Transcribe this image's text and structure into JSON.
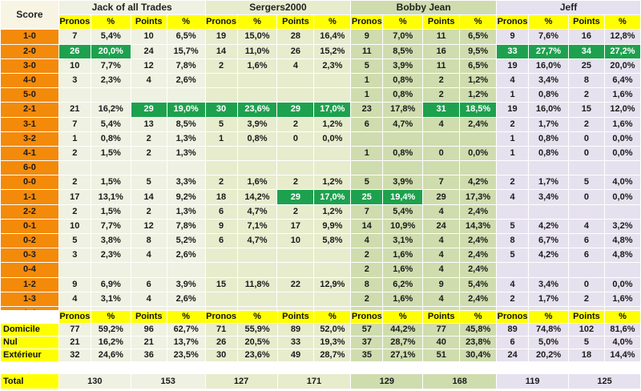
{
  "header": {
    "score_label": "Score",
    "groups": [
      "Jack of all Trades",
      "Sergers2000",
      "Bobby Jean",
      "Jeff"
    ],
    "subheaders": [
      "Pronos",
      "%",
      "Points",
      "%"
    ]
  },
  "highlight_color": "#1ea14e",
  "score_column_color": "#f38a0a",
  "subheader_color": "#ffff00",
  "rows": [
    {
      "score": "1-0",
      "cells": [
        "7",
        "5,4%",
        "10",
        "6,5%",
        "19",
        "15,0%",
        "28",
        "16,4%",
        "9",
        "7,0%",
        "11",
        "6,5%",
        "9",
        "7,6%",
        "16",
        "12,8%"
      ]
    },
    {
      "score": "2-0",
      "cells": [
        "26",
        "20,0%",
        "24",
        "15,7%",
        "14",
        "11,0%",
        "26",
        "15,2%",
        "11",
        "8,5%",
        "16",
        "9,5%",
        "33",
        "27,7%",
        "34",
        "27,2%"
      ]
    },
    {
      "score": "3-0",
      "cells": [
        "10",
        "7,7%",
        "12",
        "7,8%",
        "2",
        "1,6%",
        "4",
        "2,3%",
        "5",
        "3,9%",
        "11",
        "6,5%",
        "19",
        "16,0%",
        "25",
        "20,0%"
      ]
    },
    {
      "score": "4-0",
      "cells": [
        "3",
        "2,3%",
        "4",
        "2,6%",
        "",
        "",
        "",
        "",
        "1",
        "0,8%",
        "2",
        "1,2%",
        "4",
        "3,4%",
        "8",
        "6,4%"
      ]
    },
    {
      "score": "5-0",
      "cells": [
        "",
        "",
        "",
        "",
        "",
        "",
        "",
        "",
        "1",
        "0,8%",
        "2",
        "1,2%",
        "1",
        "0,8%",
        "2",
        "1,6%"
      ]
    },
    {
      "score": "2-1",
      "cells": [
        "21",
        "16,2%",
        "29",
        "19,0%",
        "30",
        "23,6%",
        "29",
        "17,0%",
        "23",
        "17,8%",
        "31",
        "18,5%",
        "19",
        "16,0%",
        "15",
        "12,0%"
      ]
    },
    {
      "score": "3-1",
      "cells": [
        "7",
        "5,4%",
        "13",
        "8,5%",
        "5",
        "3,9%",
        "2",
        "1,2%",
        "6",
        "4,7%",
        "4",
        "2,4%",
        "2",
        "1,7%",
        "2",
        "1,6%"
      ]
    },
    {
      "score": "3-2",
      "cells": [
        "1",
        "0,8%",
        "2",
        "1,3%",
        "1",
        "0,8%",
        "0",
        "0,0%",
        "",
        "",
        "",
        "",
        "1",
        "0,8%",
        "0",
        "0,0%"
      ]
    },
    {
      "score": "4-1",
      "cells": [
        "2",
        "1,5%",
        "2",
        "1,3%",
        "",
        "",
        "",
        "",
        "1",
        "0,8%",
        "0",
        "0,0%",
        "1",
        "0,8%",
        "0",
        "0,0%"
      ]
    },
    {
      "score": "6-0",
      "cells": [
        "",
        "",
        "",
        "",
        "",
        "",
        "",
        "",
        "",
        "",
        "",
        "",
        "",
        "",
        "",
        ""
      ]
    },
    {
      "score": "0-0",
      "cells": [
        "2",
        "1,5%",
        "5",
        "3,3%",
        "2",
        "1,6%",
        "2",
        "1,2%",
        "5",
        "3,9%",
        "7",
        "4,2%",
        "2",
        "1,7%",
        "5",
        "4,0%"
      ]
    },
    {
      "score": "1-1",
      "cells": [
        "17",
        "13,1%",
        "14",
        "9,2%",
        "18",
        "14,2%",
        "29",
        "17,0%",
        "25",
        "19,4%",
        "29",
        "17,3%",
        "4",
        "3,4%",
        "0",
        "0,0%"
      ]
    },
    {
      "score": "2-2",
      "cells": [
        "2",
        "1,5%",
        "2",
        "1,3%",
        "6",
        "4,7%",
        "2",
        "1,2%",
        "7",
        "5,4%",
        "4",
        "2,4%",
        "",
        "",
        "",
        ""
      ]
    },
    {
      "score": "0-1",
      "cells": [
        "10",
        "7,7%",
        "12",
        "7,8%",
        "9",
        "7,1%",
        "17",
        "9,9%",
        "14",
        "10,9%",
        "24",
        "14,3%",
        "5",
        "4,2%",
        "4",
        "3,2%"
      ]
    },
    {
      "score": "0-2",
      "cells": [
        "5",
        "3,8%",
        "8",
        "5,2%",
        "6",
        "4,7%",
        "10",
        "5,8%",
        "4",
        "3,1%",
        "4",
        "2,4%",
        "8",
        "6,7%",
        "6",
        "4,8%"
      ]
    },
    {
      "score": "0-3",
      "cells": [
        "3",
        "2,3%",
        "4",
        "2,6%",
        "",
        "",
        "",
        "",
        "2",
        "1,6%",
        "4",
        "2,4%",
        "5",
        "4,2%",
        "6",
        "4,8%"
      ]
    },
    {
      "score": "0-4",
      "cells": [
        "",
        "",
        "",
        "",
        "",
        "",
        "",
        "",
        "2",
        "1,6%",
        "4",
        "2,4%",
        "",
        "",
        "",
        ""
      ]
    },
    {
      "score": "1-2",
      "cells": [
        "9",
        "6,9%",
        "6",
        "3,9%",
        "15",
        "11,8%",
        "22",
        "12,9%",
        "8",
        "6,2%",
        "9",
        "5,4%",
        "4",
        "3,4%",
        "0",
        "0,0%"
      ]
    },
    {
      "score": "1-3",
      "cells": [
        "4",
        "3,1%",
        "4",
        "2,6%",
        "",
        "",
        "",
        "",
        "2",
        "1,6%",
        "4",
        "2,4%",
        "2",
        "1,7%",
        "2",
        "1,6%"
      ]
    },
    {
      "score": "1-4",
      "cells": [
        "",
        "",
        "",
        "",
        "",
        "",
        "",
        "",
        "",
        "",
        "",
        "",
        "",
        "",
        "",
        ""
      ]
    },
    {
      "score": "2-3",
      "cells": [
        "1",
        "0,8%",
        "2",
        "1,3%",
        "",
        "",
        "",
        "",
        "3",
        "2,3%",
        "2",
        "1,2%",
        "",
        "",
        "",
        ""
      ]
    }
  ],
  "summary": {
    "subheaders": [
      "Pronos",
      "%",
      "Points",
      "%"
    ],
    "rows": [
      {
        "label": "Domicile",
        "cells": [
          "77",
          "59,2%",
          "96",
          "62,7%",
          "71",
          "55,9%",
          "89",
          "52,0%",
          "57",
          "44,2%",
          "77",
          "45,8%",
          "89",
          "74,8%",
          "102",
          "81,6%"
        ]
      },
      {
        "label": "Nul",
        "cells": [
          "21",
          "16,2%",
          "21",
          "13,7%",
          "26",
          "20,5%",
          "33",
          "19,3%",
          "37",
          "28,7%",
          "40",
          "23,8%",
          "6",
          "5,0%",
          "5",
          "4,0%"
        ]
      },
      {
        "label": "Extérieur",
        "cells": [
          "32",
          "24,6%",
          "36",
          "23,5%",
          "30",
          "23,6%",
          "49",
          "28,7%",
          "35",
          "27,1%",
          "51",
          "30,4%",
          "24",
          "20,2%",
          "18",
          "14,4%"
        ]
      }
    ]
  },
  "total": {
    "label": "Total",
    "values": [
      "130",
      "153",
      "127",
      "171",
      "129",
      "168",
      "119",
      "125"
    ]
  }
}
